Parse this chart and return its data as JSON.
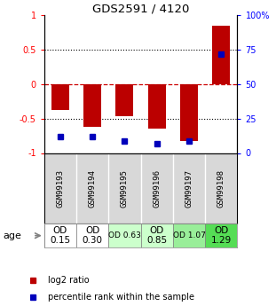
{
  "title": "GDS2591 / 4120",
  "samples": [
    "GSM99193",
    "GSM99194",
    "GSM99195",
    "GSM99196",
    "GSM99197",
    "GSM99198"
  ],
  "log2_ratio": [
    -0.38,
    -0.62,
    -0.47,
    -0.65,
    -0.82,
    0.85
  ],
  "percentile_rank": [
    12,
    12,
    9,
    7,
    9,
    72
  ],
  "age_labels": [
    "OD\n0.15",
    "OD\n0.30",
    "OD 0.63",
    "OD\n0.85",
    "OD 1.07",
    "OD\n1.29"
  ],
  "age_fontsize": [
    7.5,
    7.5,
    6.5,
    7.5,
    6.5,
    7.5
  ],
  "age_colors": [
    "#ffffff",
    "#ffffff",
    "#ccffcc",
    "#ccffcc",
    "#99ee99",
    "#55dd55"
  ],
  "ylim_left": [
    -1.0,
    1.0
  ],
  "ylim_right": [
    0,
    100
  ],
  "yticks_left": [
    -1.0,
    -0.5,
    0.0,
    0.5,
    1.0
  ],
  "ytick_labels_left": [
    "-1",
    "-0.5",
    "0",
    "0.5",
    "1"
  ],
  "yticks_right": [
    0,
    25,
    50,
    75,
    100
  ],
  "ytick_labels_right": [
    "0",
    "25",
    "50",
    "75",
    "100%"
  ],
  "bar_color": "#bb0000",
  "dot_color": "#0000bb",
  "hline_color": "#cc0000",
  "grid_color": "#000000",
  "legend_log2": "log2 ratio",
  "legend_pct": "percentile rank within the sample",
  "age_label": "age"
}
